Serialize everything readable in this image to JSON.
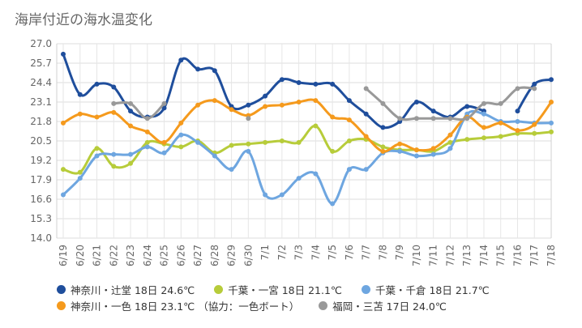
{
  "chart_data": {
    "type": "line",
    "title": "海岸付近の海水温変化",
    "xlabel": "",
    "ylabel": "",
    "ylim": [
      14.0,
      27.0
    ],
    "yticks": [
      "14.0",
      "15.3",
      "16.6",
      "17.9",
      "19.2",
      "20.5",
      "21.8",
      "23.1",
      "24.4",
      "25.7",
      "27.0"
    ],
    "grid": true,
    "legend_position": "bottom",
    "categories": [
      "6/19",
      "6/20",
      "6/21",
      "6/22",
      "6/23",
      "6/24",
      "6/25",
      "6/26",
      "6/27",
      "6/28",
      "6/29",
      "6/30",
      "7/1",
      "7/2",
      "7/3",
      "7/4",
      "7/5",
      "7/6",
      "7/7",
      "7/8",
      "7/9",
      "7/10",
      "7/11",
      "7/12",
      "7/13",
      "7/14",
      "7/15",
      "7/16",
      "7/17",
      "7/18"
    ],
    "series": [
      {
        "name": "神奈川・辻堂 18日 24.6℃",
        "color": "#1f4e9c",
        "values": [
          26.3,
          23.6,
          24.3,
          24.1,
          22.5,
          22.1,
          22.7,
          25.9,
          25.3,
          25.2,
          22.8,
          22.9,
          23.5,
          24.6,
          24.4,
          24.3,
          24.3,
          23.2,
          22.3,
          21.4,
          21.8,
          23.1,
          22.5,
          22.1,
          22.8,
          22.5,
          null,
          22.5,
          24.3,
          24.6
        ]
      },
      {
        "name": "千葉・一宮 18日 21.1℃",
        "color": "#b7cc3a",
        "values": [
          18.6,
          18.4,
          20.0,
          18.8,
          19.0,
          20.4,
          20.3,
          20.1,
          20.5,
          19.7,
          20.2,
          20.3,
          20.4,
          20.5,
          20.4,
          21.5,
          19.8,
          20.5,
          20.6,
          20.1,
          19.9,
          19.9,
          19.8,
          20.4,
          20.6,
          20.7,
          20.8,
          21.0,
          21.0,
          21.1
        ]
      },
      {
        "name": "千葉・千倉 18日 21.7℃",
        "color": "#6ea6e0",
        "values": [
          16.9,
          18.0,
          19.5,
          19.6,
          19.6,
          20.1,
          19.7,
          20.9,
          20.4,
          19.5,
          18.6,
          19.8,
          16.9,
          16.9,
          18.0,
          18.3,
          16.3,
          18.6,
          18.6,
          19.7,
          19.8,
          19.5,
          19.6,
          20.0,
          22.3,
          22.3,
          21.8,
          21.8,
          21.7,
          21.7
        ]
      },
      {
        "name": "神奈川・一色 18日 23.1℃ （協力：一色ボート）",
        "color": "#f59a1d",
        "values": [
          21.7,
          22.3,
          22.1,
          22.4,
          21.5,
          21.1,
          20.4,
          21.7,
          22.9,
          23.2,
          22.6,
          22.2,
          22.8,
          22.9,
          23.1,
          23.2,
          22.1,
          21.9,
          20.8,
          19.8,
          20.3,
          19.9,
          20.0,
          20.9,
          22.1,
          21.4,
          21.7,
          21.2,
          21.6,
          23.1
        ]
      },
      {
        "name": "福岡・三苫 17日 24.0℃",
        "color": "#999999",
        "values": [
          null,
          null,
          null,
          23.0,
          23.0,
          22.0,
          23.0,
          null,
          null,
          null,
          null,
          22.0,
          null,
          null,
          null,
          null,
          null,
          null,
          24.0,
          23.0,
          22.0,
          22.0,
          22.0,
          22.0,
          22.0,
          23.0,
          23.0,
          24.0,
          24.0,
          null
        ]
      }
    ]
  }
}
